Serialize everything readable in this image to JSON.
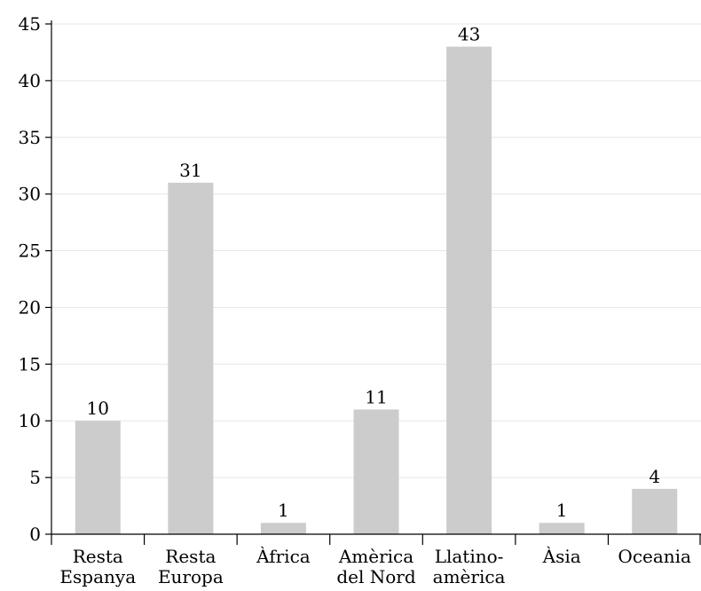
{
  "chart_data": {
    "type": "bar",
    "categories": [
      [
        "Resta",
        "Espanya"
      ],
      [
        "Resta",
        "Europa"
      ],
      [
        "Àfrica"
      ],
      [
        "Amèrica",
        "del Nord"
      ],
      [
        "Llatino-",
        "amèrica"
      ],
      [
        "Àsia"
      ],
      [
        "Oceania"
      ]
    ],
    "values": [
      10,
      31,
      1,
      11,
      43,
      1,
      4
    ],
    "value_labels": [
      "10",
      "31",
      "1",
      "11",
      "43",
      "1",
      "4"
    ],
    "ylim": [
      0,
      45
    ],
    "yticks": [
      0,
      5,
      10,
      15,
      20,
      25,
      30,
      35,
      40,
      45
    ],
    "grid": true,
    "bar_color": "#cccccc",
    "grid_color": "#e6e6e6"
  }
}
